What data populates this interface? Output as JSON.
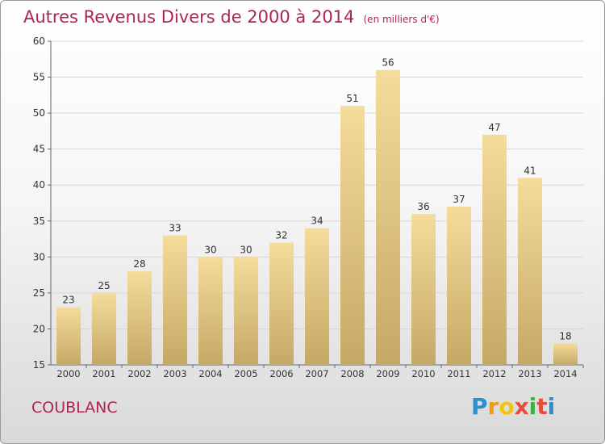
{
  "title": "Autres Revenus Divers de 2000 à 2014",
  "unit": "(en milliers d'€)",
  "place": "COUBLANC",
  "logo": {
    "letters": [
      "P",
      "r",
      "o",
      "x",
      "i",
      "t",
      "i"
    ],
    "colors": [
      "#2a8fd0",
      "#f39c12",
      "#f1c40f",
      "#e74c3c",
      "#3cb043",
      "#e74c3c",
      "#2a8fd0"
    ]
  },
  "colors": {
    "bar_light": "#f5dc9a",
    "bar_dark": "#c4a866",
    "title": "#b0254f",
    "grid": "#d6d6d6"
  },
  "chart_data": {
    "type": "bar",
    "categories": [
      "2000",
      "2001",
      "2002",
      "2003",
      "2004",
      "2005",
      "2006",
      "2007",
      "2008",
      "2009",
      "2010",
      "2011",
      "2012",
      "2013",
      "2014"
    ],
    "values": [
      23,
      25,
      28,
      33,
      30,
      30,
      32,
      34,
      51,
      56,
      36,
      37,
      47,
      41,
      18
    ],
    "ylim": [
      15,
      60
    ],
    "yticks": [
      15,
      20,
      25,
      30,
      35,
      40,
      45,
      50,
      55,
      60
    ],
    "grid": true
  }
}
